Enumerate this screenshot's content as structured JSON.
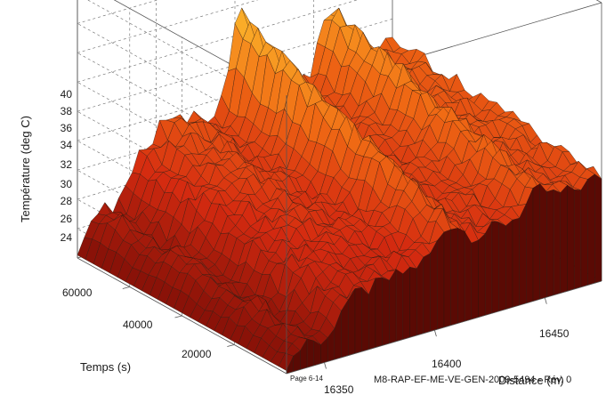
{
  "chart_data": {
    "type": "surface",
    "zlabel": "Température (deg C)",
    "ylabel": "Temps (s)",
    "xlabel": "Distance (m)",
    "z_ticks": [
      "24",
      "26",
      "28",
      "30",
      "32",
      "34",
      "36",
      "38",
      "40"
    ],
    "y_ticks": [
      "20000",
      "40000",
      "60000"
    ],
    "x_ticks": [
      "16350",
      "16400",
      "16450"
    ],
    "zlim": [
      22,
      41
    ],
    "grid": true,
    "colormap": [
      "#8a1208",
      "#d42a10",
      "#f06a14",
      "#fbb42a",
      "#fff070"
    ]
  },
  "footer": {
    "page": "Page 6-14",
    "doc_ref": "M8-RAP-EF-ME-VE-GEN-2009-5494 - Rév. 0"
  }
}
